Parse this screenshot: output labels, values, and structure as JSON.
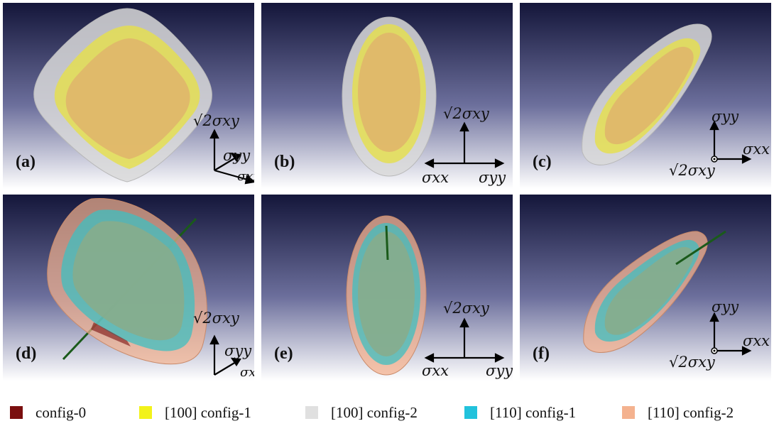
{
  "panels": [
    {
      "label": "(a)",
      "axes": {
        "a1": "√2σxy",
        "a2": "σyy",
        "a3": "σxx"
      }
    },
    {
      "label": "(b)",
      "axes": {
        "a1": "√2σxy",
        "a2": "σxx",
        "a3": "σyy"
      }
    },
    {
      "label": "(c)",
      "axes": {
        "a1": "σyy",
        "a2": "σxx",
        "a3": "√2σxy"
      }
    },
    {
      "label": "(d)",
      "axes": {
        "a1": "√2σxy",
        "a2": "σyy",
        "a3": "σxx"
      }
    },
    {
      "label": "(e)",
      "axes": {
        "a1": "√2σxy",
        "a2": "σxx",
        "a3": "σyy"
      }
    },
    {
      "label": "(f)",
      "axes": {
        "a1": "σyy",
        "a2": "σxx",
        "a3": "√2σxy"
      }
    }
  ],
  "legend": [
    {
      "label": "config-0",
      "color": "#7a0f0f"
    },
    {
      "label": "[100] config-1",
      "color": "#f2f21a"
    },
    {
      "label": "[100] config-2",
      "color": "#e0e0e0"
    },
    {
      "label": "[110] config-1",
      "color": "#22c2dc"
    },
    {
      "label": "[110] config-2",
      "color": "#f4b28f"
    }
  ]
}
